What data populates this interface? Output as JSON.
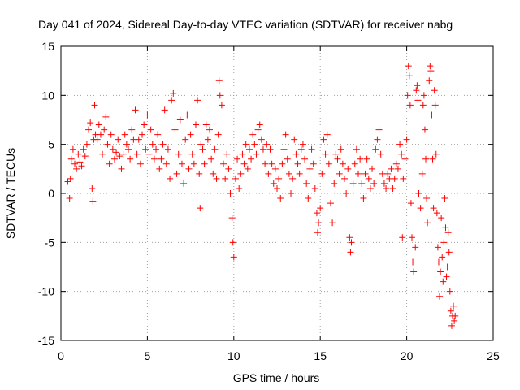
{
  "chart_data": {
    "type": "scatter",
    "title": "Day 041 of 2024, Sidereal Day-to-day VTEC variation (SDTVAR) for receiver nabg",
    "xlabel": "GPS time / hours",
    "ylabel": "SDTVAR / TECUs",
    "xlim": [
      0,
      25
    ],
    "ylim": [
      -15,
      15
    ],
    "xticks": [
      0,
      5,
      10,
      15,
      20,
      25
    ],
    "yticks": [
      -15,
      -10,
      -5,
      0,
      5,
      10,
      15
    ],
    "grid": true,
    "marker": "plus",
    "series": [
      {
        "name": "SDTVAR",
        "color": "#ff0000",
        "points": [
          [
            0.4,
            1.2
          ],
          [
            0.5,
            -0.5
          ],
          [
            0.55,
            1.5
          ],
          [
            0.6,
            3.5
          ],
          [
            0.7,
            4.5
          ],
          [
            0.8,
            3.0
          ],
          [
            0.9,
            2.5
          ],
          [
            1.0,
            4.0
          ],
          [
            1.1,
            3.2
          ],
          [
            1.2,
            2.8
          ],
          [
            1.3,
            4.5
          ],
          [
            1.4,
            3.8
          ],
          [
            1.5,
            5.0
          ],
          [
            1.6,
            6.5
          ],
          [
            1.7,
            7.2
          ],
          [
            1.8,
            0.5
          ],
          [
            1.85,
            -0.8
          ],
          [
            1.9,
            5.5
          ],
          [
            1.95,
            9.0
          ],
          [
            2.0,
            6.0
          ],
          [
            2.1,
            5.5
          ],
          [
            2.2,
            7.0
          ],
          [
            2.3,
            6.0
          ],
          [
            2.4,
            4.0
          ],
          [
            2.5,
            6.5
          ],
          [
            2.6,
            7.8
          ],
          [
            2.7,
            5.0
          ],
          [
            2.8,
            3.0
          ],
          [
            2.9,
            6.0
          ],
          [
            3.0,
            4.5
          ],
          [
            3.1,
            3.5
          ],
          [
            3.2,
            4.2
          ],
          [
            3.3,
            5.5
          ],
          [
            3.4,
            3.8
          ],
          [
            3.5,
            2.5
          ],
          [
            3.6,
            4.0
          ],
          [
            3.7,
            6.0
          ],
          [
            3.8,
            5.0
          ],
          [
            3.9,
            4.5
          ],
          [
            4.0,
            3.5
          ],
          [
            4.1,
            6.5
          ],
          [
            4.2,
            5.5
          ],
          [
            4.3,
            8.5
          ],
          [
            4.4,
            4.0
          ],
          [
            4.5,
            5.5
          ],
          [
            4.6,
            3.0
          ],
          [
            4.7,
            6.0
          ],
          [
            4.8,
            7.0
          ],
          [
            4.9,
            4.5
          ],
          [
            5.0,
            8.0
          ],
          [
            5.1,
            4.0
          ],
          [
            5.2,
            6.5
          ],
          [
            5.3,
            5.0
          ],
          [
            5.4,
            3.5
          ],
          [
            5.5,
            4.5
          ],
          [
            5.6,
            6.0
          ],
          [
            5.7,
            2.5
          ],
          [
            5.8,
            3.5
          ],
          [
            5.9,
            5.0
          ],
          [
            6.0,
            8.5
          ],
          [
            6.1,
            3.0
          ],
          [
            6.2,
            4.5
          ],
          [
            6.3,
            1.5
          ],
          [
            6.4,
            9.5
          ],
          [
            6.5,
            10.2
          ],
          [
            6.6,
            6.5
          ],
          [
            6.7,
            2.0
          ],
          [
            6.8,
            4.0
          ],
          [
            6.9,
            7.5
          ],
          [
            7.0,
            3.0
          ],
          [
            7.1,
            1.0
          ],
          [
            7.2,
            5.5
          ],
          [
            7.3,
            8.0
          ],
          [
            7.4,
            2.5
          ],
          [
            7.5,
            6.0
          ],
          [
            7.6,
            4.0
          ],
          [
            7.7,
            3.0
          ],
          [
            7.8,
            7.0
          ],
          [
            7.9,
            9.5
          ],
          [
            8.0,
            2.0
          ],
          [
            8.05,
            -1.5
          ],
          [
            8.1,
            5.0
          ],
          [
            8.2,
            4.5
          ],
          [
            8.3,
            3.0
          ],
          [
            8.4,
            7.0
          ],
          [
            8.5,
            5.5
          ],
          [
            8.6,
            6.5
          ],
          [
            8.7,
            3.5
          ],
          [
            8.8,
            2.0
          ],
          [
            8.9,
            4.5
          ],
          [
            9.0,
            1.5
          ],
          [
            9.1,
            6.0
          ],
          [
            9.15,
            11.5
          ],
          [
            9.2,
            10.0
          ],
          [
            9.3,
            9.0
          ],
          [
            9.4,
            3.0
          ],
          [
            9.5,
            1.5
          ],
          [
            9.6,
            4.0
          ],
          [
            9.7,
            2.5
          ],
          [
            9.8,
            0.0
          ],
          [
            9.9,
            -2.5
          ],
          [
            9.95,
            -5.0
          ],
          [
            10.0,
            -6.5
          ],
          [
            10.1,
            1.5
          ],
          [
            10.2,
            3.5
          ],
          [
            10.3,
            0.5
          ],
          [
            10.4,
            2.0
          ],
          [
            10.5,
            4.0
          ],
          [
            10.6,
            3.0
          ],
          [
            10.7,
            5.0
          ],
          [
            10.8,
            2.5
          ],
          [
            10.9,
            4.5
          ],
          [
            11.0,
            3.5
          ],
          [
            11.1,
            6.0
          ],
          [
            11.2,
            5.0
          ],
          [
            11.3,
            4.0
          ],
          [
            11.4,
            6.5
          ],
          [
            11.5,
            7.0
          ],
          [
            11.6,
            5.5
          ],
          [
            11.7,
            4.5
          ],
          [
            11.8,
            3.0
          ],
          [
            11.9,
            5.0
          ],
          [
            12.0,
            2.0
          ],
          [
            12.1,
            4.5
          ],
          [
            12.2,
            3.0
          ],
          [
            12.3,
            1.0
          ],
          [
            12.4,
            2.5
          ],
          [
            12.5,
            0.5
          ],
          [
            12.6,
            1.5
          ],
          [
            12.7,
            -0.5
          ],
          [
            12.8,
            3.0
          ],
          [
            12.9,
            4.5
          ],
          [
            13.0,
            6.0
          ],
          [
            13.1,
            3.5
          ],
          [
            13.2,
            2.0
          ],
          [
            13.3,
            0.0
          ],
          [
            13.4,
            1.5
          ],
          [
            13.5,
            5.5
          ],
          [
            13.6,
            4.0
          ],
          [
            13.7,
            3.0
          ],
          [
            13.8,
            2.0
          ],
          [
            13.9,
            4.5
          ],
          [
            14.0,
            5.0
          ],
          [
            14.1,
            3.5
          ],
          [
            14.2,
            1.0
          ],
          [
            14.3,
            -0.5
          ],
          [
            14.4,
            2.5
          ],
          [
            14.5,
            4.5
          ],
          [
            14.6,
            3.0
          ],
          [
            14.7,
            0.5
          ],
          [
            14.8,
            -2.0
          ],
          [
            14.85,
            -4.0
          ],
          [
            14.9,
            -3.0
          ],
          [
            15.0,
            -1.5
          ],
          [
            15.1,
            2.0
          ],
          [
            15.2,
            5.5
          ],
          [
            15.3,
            4.0
          ],
          [
            15.4,
            6.0
          ],
          [
            15.5,
            3.0
          ],
          [
            15.6,
            -1.0
          ],
          [
            15.7,
            -3.0
          ],
          [
            15.8,
            1.0
          ],
          [
            15.9,
            4.0
          ],
          [
            16.0,
            3.5
          ],
          [
            16.1,
            2.0
          ],
          [
            16.2,
            4.5
          ],
          [
            16.3,
            3.0
          ],
          [
            16.4,
            1.5
          ],
          [
            16.5,
            0.0
          ],
          [
            16.6,
            2.5
          ],
          [
            16.7,
            -4.5
          ],
          [
            16.75,
            -6.0
          ],
          [
            16.8,
            -5.0
          ],
          [
            16.9,
            1.0
          ],
          [
            17.0,
            3.0
          ],
          [
            17.1,
            4.5
          ],
          [
            17.2,
            2.0
          ],
          [
            17.3,
            3.5
          ],
          [
            17.4,
            1.0
          ],
          [
            17.5,
            -0.5
          ],
          [
            17.6,
            2.0
          ],
          [
            17.7,
            3.5
          ],
          [
            17.8,
            1.5
          ],
          [
            17.9,
            0.5
          ],
          [
            18.0,
            2.5
          ],
          [
            18.1,
            1.0
          ],
          [
            18.2,
            4.5
          ],
          [
            18.3,
            5.5
          ],
          [
            18.4,
            6.5
          ],
          [
            18.5,
            4.0
          ],
          [
            18.6,
            2.0
          ],
          [
            18.7,
            1.0
          ],
          [
            18.8,
            0.5
          ],
          [
            18.9,
            2.0
          ],
          [
            19.0,
            1.5
          ],
          [
            19.1,
            2.5
          ],
          [
            19.2,
            0.5
          ],
          [
            19.3,
            1.5
          ],
          [
            19.4,
            3.0
          ],
          [
            19.5,
            2.5
          ],
          [
            19.6,
            5.0
          ],
          [
            19.7,
            4.0
          ],
          [
            19.75,
            -4.5
          ],
          [
            19.8,
            1.5
          ],
          [
            19.9,
            3.5
          ],
          [
            20.0,
            5.5
          ],
          [
            20.05,
            10.0
          ],
          [
            20.1,
            13.0
          ],
          [
            20.15,
            12.0
          ],
          [
            20.2,
            9.0
          ],
          [
            20.25,
            -1.0
          ],
          [
            20.3,
            -4.5
          ],
          [
            20.35,
            -7.0
          ],
          [
            20.4,
            -8.0
          ],
          [
            20.5,
            -5.5
          ],
          [
            20.55,
            10.5
          ],
          [
            20.6,
            11.0
          ],
          [
            20.65,
            9.5
          ],
          [
            20.7,
            0.0
          ],
          [
            20.8,
            -1.5
          ],
          [
            20.9,
            2.0
          ],
          [
            20.95,
            9.0
          ],
          [
            21.0,
            10.0
          ],
          [
            21.05,
            6.5
          ],
          [
            21.1,
            3.5
          ],
          [
            21.15,
            -0.5
          ],
          [
            21.2,
            -3.0
          ],
          [
            21.3,
            11.5
          ],
          [
            21.35,
            13.0
          ],
          [
            21.4,
            12.5
          ],
          [
            21.45,
            8.0
          ],
          [
            21.5,
            3.5
          ],
          [
            21.55,
            -1.5
          ],
          [
            21.6,
            10.5
          ],
          [
            21.65,
            9.0
          ],
          [
            21.7,
            4.0
          ],
          [
            21.75,
            -2.0
          ],
          [
            21.8,
            -5.5
          ],
          [
            21.85,
            -7.0
          ],
          [
            21.9,
            -10.5
          ],
          [
            21.95,
            -8.0
          ],
          [
            22.0,
            -2.5
          ],
          [
            22.05,
            -6.5
          ],
          [
            22.1,
            -9.0
          ],
          [
            22.15,
            -5.0
          ],
          [
            22.2,
            -0.5
          ],
          [
            22.25,
            -3.5
          ],
          [
            22.3,
            -8.5
          ],
          [
            22.35,
            -7.5
          ],
          [
            22.4,
            -4.0
          ],
          [
            22.45,
            -6.0
          ],
          [
            22.5,
            -10.0
          ],
          [
            22.55,
            -12.0
          ],
          [
            22.6,
            -13.5
          ],
          [
            22.65,
            -12.5
          ],
          [
            22.7,
            -11.5
          ],
          [
            22.75,
            -13.0
          ],
          [
            22.8,
            -12.5
          ]
        ]
      }
    ]
  }
}
